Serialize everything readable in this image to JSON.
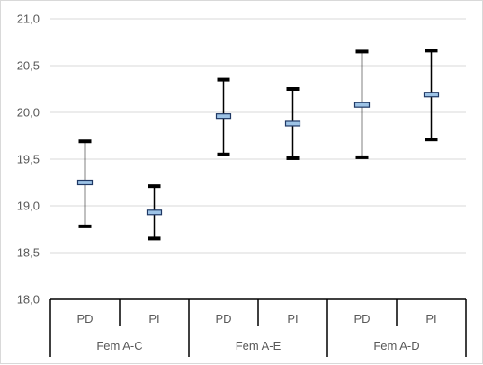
{
  "chart_data": {
    "type": "error-bar",
    "title": "",
    "xlabel": "",
    "ylabel": "",
    "ylim": [
      18.0,
      21.0
    ],
    "yticks": [
      "18,0",
      "18,5",
      "19,0",
      "19,5",
      "20,0",
      "20,5",
      "21,0"
    ],
    "ytick_values": [
      18.0,
      18.5,
      19.0,
      19.5,
      20.0,
      20.5,
      21.0
    ],
    "grid": true,
    "legend": "none",
    "groups": [
      {
        "label": "Fem A-C",
        "categories": [
          "PD",
          "PI"
        ]
      },
      {
        "label": "Fem A-E",
        "categories": [
          "PD",
          "PI"
        ]
      },
      {
        "label": "Fem A-D",
        "categories": [
          "PD",
          "PI"
        ]
      }
    ],
    "points": [
      {
        "group": "Fem A-C",
        "category": "PD",
        "mean": 19.25,
        "low": 18.78,
        "high": 19.69
      },
      {
        "group": "Fem A-C",
        "category": "PI",
        "mean": 18.93,
        "low": 18.65,
        "high": 19.21
      },
      {
        "group": "Fem A-E",
        "category": "PD",
        "mean": 19.96,
        "low": 19.55,
        "high": 20.35
      },
      {
        "group": "Fem A-E",
        "category": "PI",
        "mean": 19.88,
        "low": 19.51,
        "high": 20.25
      },
      {
        "group": "Fem A-D",
        "category": "PD",
        "mean": 20.08,
        "low": 19.52,
        "high": 20.65
      },
      {
        "group": "Fem A-D",
        "category": "PI",
        "mean": 20.19,
        "low": 19.71,
        "high": 20.66
      }
    ],
    "colors": {
      "marker_fill": "#9dc3e6",
      "marker_stroke": "#1f3864",
      "whisker": "#000000",
      "gridline": "#d9d9d9",
      "axis": "#000000",
      "text": "#595959"
    }
  }
}
